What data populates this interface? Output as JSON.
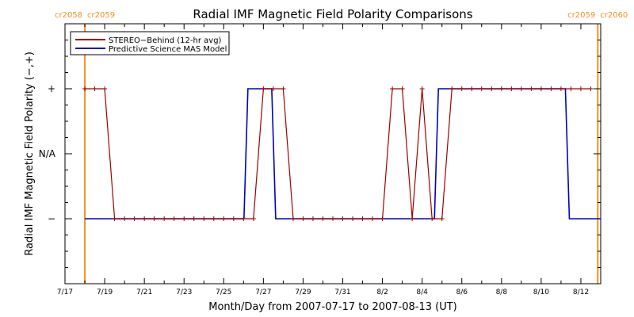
{
  "chart_data": {
    "type": "line",
    "title": "Radial IMF Magnetic Field Polarity Comparisons",
    "xlabel": "Month/Day from 2007-07-17 to 2007-08-13 (UT)",
    "ylabel": "Radial IMF Magnetic Field Polarity (−,+)",
    "x_tick_labels": [
      "7/17",
      "7/19",
      "7/21",
      "7/23",
      "7/25",
      "7/27",
      "7/29",
      "7/31",
      "8/2",
      "8/4",
      "8/6",
      "8/8",
      "8/10",
      "8/12"
    ],
    "x_range_days": [
      0,
      27
    ],
    "y_tick_labels": [
      "+",
      "N/A",
      "−"
    ],
    "y_levels": [
      1,
      0,
      -1
    ],
    "ylim": [
      -2,
      2
    ],
    "carrington_markers": [
      {
        "day": 1.0,
        "left_label": "cr2058",
        "right_label": "cr2059"
      },
      {
        "day": 26.85,
        "left_label": "cr2059",
        "right_label": "cr2060"
      }
    ],
    "legend_position": "top-left",
    "colors": {
      "stereo": "#a00000",
      "mas": "#0000c8",
      "carrington": "#f5901e"
    },
    "series": [
      {
        "name": "STEREO−Behind (12-hr avg)",
        "color": "#a00000",
        "marker": "+",
        "x": [
          1.0,
          1.5,
          2.0,
          2.5,
          3.0,
          3.5,
          4.0,
          4.5,
          5.0,
          5.5,
          6.0,
          6.5,
          7.0,
          7.5,
          8.0,
          8.5,
          9.0,
          9.5,
          10.0,
          10.5,
          11.0,
          11.5,
          12.0,
          12.5,
          13.0,
          13.5,
          14.0,
          14.5,
          15.0,
          15.5,
          16.0,
          16.5,
          17.0,
          17.5,
          18.0,
          18.5,
          19.0,
          19.5,
          20.0,
          20.5,
          21.0,
          21.5,
          22.0,
          22.5,
          23.0,
          23.5,
          24.0,
          24.5,
          25.0,
          25.5,
          26.0,
          26.5
        ],
        "y": [
          1,
          1,
          1,
          -1,
          -1,
          -1,
          -1,
          -1,
          -1,
          -1,
          -1,
          -1,
          -1,
          -1,
          -1,
          -1,
          -1,
          -1,
          1,
          1,
          1,
          -1,
          -1,
          -1,
          -1,
          -1,
          -1,
          -1,
          -1,
          -1,
          -1,
          1,
          1,
          -1,
          1,
          -1,
          -1,
          1,
          1,
          1,
          1,
          1,
          1,
          1,
          1,
          1,
          1,
          1,
          1,
          1,
          1,
          1
        ]
      },
      {
        "name": "Predictive Science MAS Model",
        "color": "#0000c8",
        "steps": [
          [
            1.0,
            -1
          ],
          [
            9.1,
            1
          ],
          [
            10.5,
            -1
          ],
          [
            18.7,
            1
          ],
          [
            25.3,
            -1
          ],
          [
            27.0,
            -1
          ]
        ]
      }
    ]
  }
}
